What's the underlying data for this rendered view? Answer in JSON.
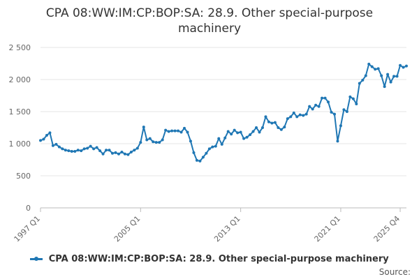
{
  "chart_data": {
    "type": "line",
    "title": "CPA 08:WW:IM:CP:BOP:SA: 28.9. Other special-purpose machinery",
    "xlabel": "",
    "ylabel": "",
    "ylim": [
      0,
      2500
    ],
    "yticks": [
      0,
      500,
      1000,
      1500,
      2000,
      2500
    ],
    "ytick_labels": [
      "0",
      "500",
      "1 000",
      "1 500",
      "2 000",
      "2 500"
    ],
    "xtick_labels": [
      "1997 Q1",
      "2005 Q1",
      "2013 Q1",
      "2021 Q1",
      "2025 Q4"
    ],
    "xtick_indices": [
      0,
      32,
      64,
      96,
      115
    ],
    "grid": true,
    "legend_position": "bottom",
    "color": "#1f77b4",
    "series": [
      {
        "name": "CPA 08:WW:IM:CP:BOP:SA: 28.9. Other special-purpose machinery",
        "values": [
          1050,
          1070,
          1130,
          1170,
          970,
          990,
          950,
          920,
          900,
          890,
          880,
          880,
          900,
          890,
          920,
          930,
          960,
          920,
          940,
          890,
          840,
          900,
          900,
          850,
          860,
          840,
          870,
          840,
          830,
          870,
          900,
          930,
          1020,
          1260,
          1060,
          1080,
          1030,
          1020,
          1020,
          1060,
          1210,
          1190,
          1200,
          1200,
          1200,
          1180,
          1240,
          1180,
          1040,
          860,
          740,
          730,
          790,
          850,
          920,
          950,
          960,
          1080,
          990,
          1090,
          1190,
          1150,
          1210,
          1170,
          1180,
          1080,
          1100,
          1140,
          1190,
          1250,
          1180,
          1250,
          1420,
          1340,
          1320,
          1330,
          1250,
          1220,
          1260,
          1390,
          1420,
          1480,
          1420,
          1450,
          1440,
          1460,
          1580,
          1540,
          1600,
          1580,
          1710,
          1710,
          1650,
          1490,
          1460,
          1040,
          1280,
          1530,
          1500,
          1730,
          1700,
          1620,
          1940,
          1990,
          2060,
          2240,
          2200,
          2160,
          2170,
          2060,
          1890,
          2080,
          1960,
          2050,
          2050,
          2220,
          2190,
          2210
        ]
      }
    ]
  },
  "legend_label": "CPA 08:WW:IM:CP:BOP:SA: 28.9. Other special-purpose machinery",
  "source_label": "Source:"
}
